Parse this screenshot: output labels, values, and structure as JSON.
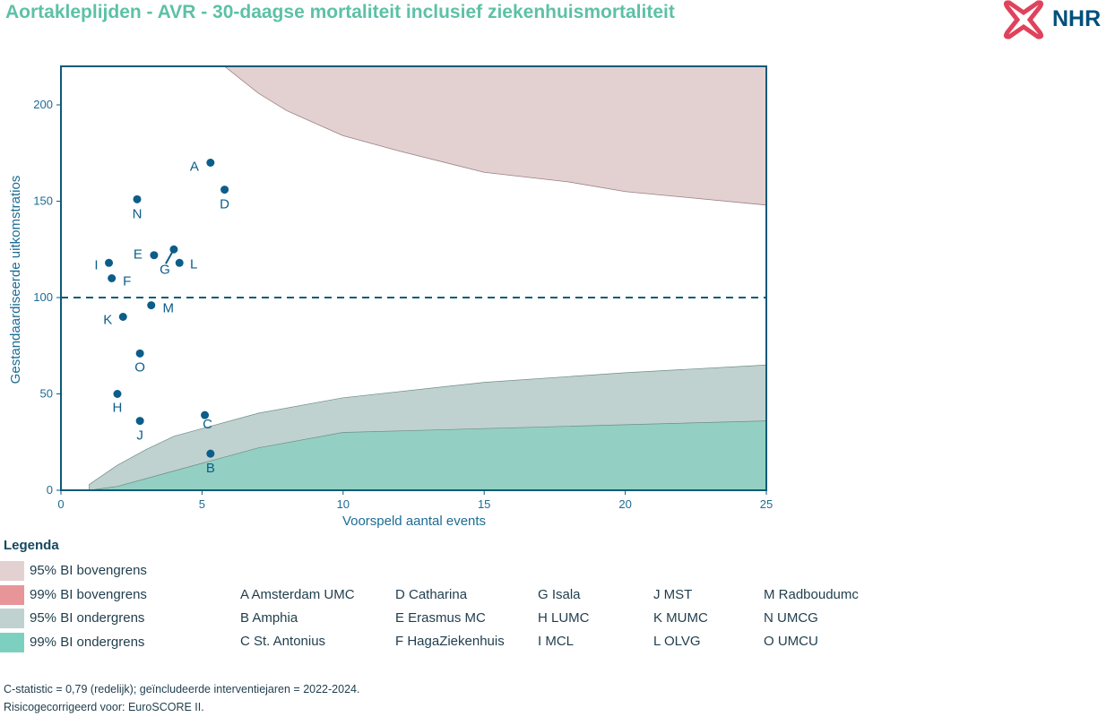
{
  "title": "Aortakleplijden - AVR - 30-daagse mortaliteit inclusief ziekenhuismortaliteit",
  "logo": {
    "text": "NHR",
    "icon": "nhr-heart-cross-icon",
    "color_icon": "#e0425c",
    "color_text": "#004f7a"
  },
  "chart_data": {
    "type": "scatter",
    "xlabel": "Voorspeld aantal events",
    "ylabel": "Gestandaardiseerde uitkomstratios",
    "xlim": [
      0,
      25
    ],
    "ylim": [
      0,
      220
    ],
    "x_ticks": [
      0,
      5,
      10,
      15,
      20,
      25
    ],
    "y_ticks": [
      0,
      50,
      100,
      150,
      200
    ],
    "reference_line": 100,
    "grid": false,
    "bands": {
      "upper_95": {
        "x": [
          5.8,
          7,
          8,
          10,
          12,
          15,
          18,
          20,
          25
        ],
        "y": [
          220,
          206,
          197,
          184,
          176,
          165,
          160,
          155,
          148
        ]
      },
      "lower_95": {
        "x": [
          1,
          1.5,
          2,
          3,
          4,
          5,
          7,
          10,
          15,
          20,
          25
        ],
        "y": [
          3,
          8,
          13,
          21,
          28,
          32,
          40,
          48,
          56,
          61,
          65
        ]
      },
      "lower_99": {
        "x": [
          1,
          2,
          3,
          4,
          5,
          7,
          10,
          15,
          20,
          25
        ],
        "y": [
          0,
          2,
          6,
          10,
          14,
          22,
          30,
          32,
          34,
          36
        ]
      }
    },
    "points": [
      {
        "label": "A",
        "x": 5.3,
        "y": 170
      },
      {
        "label": "B",
        "x": 5.3,
        "y": 19
      },
      {
        "label": "C",
        "x": 5.1,
        "y": 39
      },
      {
        "label": "D",
        "x": 5.8,
        "y": 156
      },
      {
        "label": "E",
        "x": 3.3,
        "y": 122
      },
      {
        "label": "F",
        "x": 1.8,
        "y": 110
      },
      {
        "label": "G",
        "x": 4.0,
        "y": 125
      },
      {
        "label": "H",
        "x": 2.0,
        "y": 50
      },
      {
        "label": "I",
        "x": 1.7,
        "y": 118
      },
      {
        "label": "J",
        "x": 2.8,
        "y": 36
      },
      {
        "label": "K",
        "x": 2.2,
        "y": 90
      },
      {
        "label": "L",
        "x": 4.2,
        "y": 118
      },
      {
        "label": "M",
        "x": 3.2,
        "y": 96
      },
      {
        "label": "N",
        "x": 2.7,
        "y": 151
      },
      {
        "label": "O",
        "x": 2.8,
        "y": 71
      }
    ]
  },
  "legend": {
    "title": "Legenda",
    "items": [
      {
        "label": "95% BI bovengrens",
        "color": "#e3d1d2"
      },
      {
        "label": "99% BI bovengrens",
        "color": "#e79599"
      },
      {
        "label": "95% BI ondergrens",
        "color": "#bfd2cf"
      },
      {
        "label": "99% BI ondergrens",
        "color": "#7dd0bf"
      }
    ]
  },
  "hospitals": [
    "A Amsterdam UMC",
    "B Amphia",
    "C St. Antonius",
    "D Catharina",
    "E Erasmus MC",
    "F HagaZiekenhuis",
    "G Isala",
    "H LUMC",
    "I MCL",
    "J MST",
    "K MUMC",
    "L OLVG",
    "M Radboudumc",
    "N UMCG",
    "O UMCU"
  ],
  "footnotes": [
    "C-statistic =  0,79 (redelijk); geïncludeerde interventiejaren = 2022-2024.",
    "Risicogecorrigeerd voor: EuroSCORE II."
  ],
  "colors": {
    "title": "#5cc1a6",
    "axis": "#0e5a78",
    "point": "#0b5d8a",
    "band_upper_95": "#e3d1d2",
    "band_lower_95": "#bfd2cf",
    "band_lower_99": "#93d0c3",
    "band_edge": "#6f8c88"
  }
}
